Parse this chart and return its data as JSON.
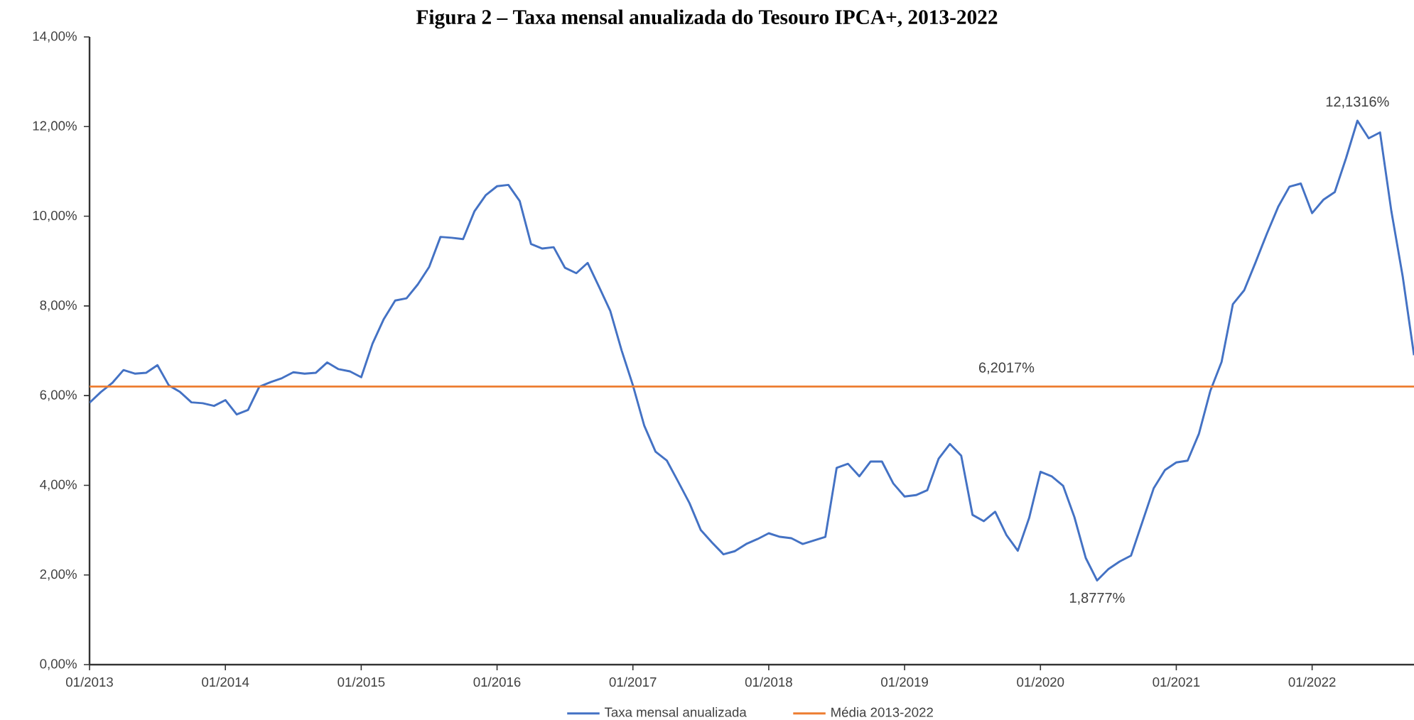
{
  "chart_data": {
    "type": "line",
    "title": "Figura 2 – Taxa mensal anualizada do Tesouro IPCA+, 2013-2022",
    "x": [
      "2013-01",
      "2013-02",
      "2013-03",
      "2013-04",
      "2013-05",
      "2013-06",
      "2013-07",
      "2013-08",
      "2013-09",
      "2013-10",
      "2013-11",
      "2013-12",
      "2014-01",
      "2014-02",
      "2014-03",
      "2014-04",
      "2014-05",
      "2014-06",
      "2014-07",
      "2014-08",
      "2014-09",
      "2014-10",
      "2014-11",
      "2014-12",
      "2015-01",
      "2015-02",
      "2015-03",
      "2015-04",
      "2015-05",
      "2015-06",
      "2015-07",
      "2015-08",
      "2015-09",
      "2015-10",
      "2015-11",
      "2015-12",
      "2016-01",
      "2016-02",
      "2016-03",
      "2016-04",
      "2016-05",
      "2016-06",
      "2016-07",
      "2016-08",
      "2016-09",
      "2016-10",
      "2016-11",
      "2016-12",
      "2017-01",
      "2017-02",
      "2017-03",
      "2017-04",
      "2017-05",
      "2017-06",
      "2017-07",
      "2017-08",
      "2017-09",
      "2017-10",
      "2017-11",
      "2017-12",
      "2018-01",
      "2018-02",
      "2018-03",
      "2018-04",
      "2018-05",
      "2018-06",
      "2018-07",
      "2018-08",
      "2018-09",
      "2018-10",
      "2018-11",
      "2018-12",
      "2019-01",
      "2019-02",
      "2019-03",
      "2019-04",
      "2019-05",
      "2019-06",
      "2019-07",
      "2019-08",
      "2019-09",
      "2019-10",
      "2019-11",
      "2019-12",
      "2020-01",
      "2020-02",
      "2020-03",
      "2020-04",
      "2020-05",
      "2020-06",
      "2020-07",
      "2020-08",
      "2020-09",
      "2020-10",
      "2020-11",
      "2020-12",
      "2021-01",
      "2021-02",
      "2021-03",
      "2021-04",
      "2021-05",
      "2021-06",
      "2021-07",
      "2021-08",
      "2021-09",
      "2021-10",
      "2021-11",
      "2021-12",
      "2022-01",
      "2022-02",
      "2022-03",
      "2022-04",
      "2022-05",
      "2022-06",
      "2022-07",
      "2022-08",
      "2022-09",
      "2022-10"
    ],
    "series": [
      {
        "name": "Taxa mensal anualizada",
        "color": "#4472c4",
        "values": [
          5.84,
          6.08,
          6.28,
          6.57,
          6.49,
          6.51,
          6.68,
          6.23,
          6.08,
          5.85,
          5.83,
          5.77,
          5.9,
          5.58,
          5.68,
          6.2,
          6.3,
          6.39,
          6.52,
          6.49,
          6.51,
          6.74,
          6.59,
          6.54,
          6.41,
          7.16,
          7.71,
          8.12,
          8.17,
          8.48,
          8.87,
          9.54,
          9.52,
          9.49,
          10.11,
          10.47,
          10.67,
          10.7,
          10.34,
          9.38,
          9.28,
          9.31,
          8.85,
          8.73,
          8.96,
          8.43,
          7.89,
          7.01,
          6.23,
          5.33,
          4.75,
          4.55,
          4.08,
          3.6,
          3.0,
          2.72,
          2.46,
          2.53,
          2.69,
          2.8,
          2.93,
          2.85,
          2.82,
          2.69,
          2.77,
          2.85,
          4.39,
          4.48,
          4.2,
          4.53,
          4.53,
          4.04,
          3.75,
          3.78,
          3.89,
          4.59,
          4.92,
          4.66,
          3.34,
          3.2,
          3.41,
          2.89,
          2.54,
          3.27,
          4.3,
          4.2,
          3.99,
          3.29,
          2.38,
          1.8777,
          2.13,
          2.3,
          2.43,
          3.18,
          3.93,
          4.34,
          4.51,
          4.55,
          5.15,
          6.1,
          6.75,
          8.04,
          8.35,
          8.97,
          9.61,
          10.21,
          10.66,
          10.73,
          10.07,
          10.37,
          10.54,
          11.3,
          12.1316,
          11.74,
          11.87,
          10.11,
          8.66,
          6.9
        ]
      },
      {
        "name": "Média 2013-2022",
        "color": "#ed7d31",
        "x": [
          "2013-01",
          "2022-10"
        ],
        "values": [
          6.2017,
          6.2017
        ]
      }
    ],
    "annotations": [
      {
        "text": "12,1316%",
        "x": "2022-05",
        "y": 12.1316
      },
      {
        "text": "6,2017%",
        "x": "2019-10",
        "y": 6.2017
      },
      {
        "text": "1,8777%",
        "x": "2020-06",
        "y": 1.8777
      }
    ],
    "xlim": [
      "2013-01",
      "2022-10"
    ],
    "xticks": [
      {
        "value": "2013-01",
        "label": "01/2013"
      },
      {
        "value": "2014-01",
        "label": "01/2014"
      },
      {
        "value": "2015-01",
        "label": "01/2015"
      },
      {
        "value": "2016-01",
        "label": "01/2016"
      },
      {
        "value": "2017-01",
        "label": "01/2017"
      },
      {
        "value": "2018-01",
        "label": "01/2018"
      },
      {
        "value": "2019-01",
        "label": "01/2019"
      },
      {
        "value": "2020-01",
        "label": "01/2020"
      },
      {
        "value": "2021-01",
        "label": "01/2021"
      },
      {
        "value": "2022-01",
        "label": "01/2022"
      }
    ],
    "ylim": [
      0,
      14
    ],
    "yticks": [
      {
        "value": 0,
        "label": "0,00%"
      },
      {
        "value": 2,
        "label": "2,00%"
      },
      {
        "value": 4,
        "label": "4,00%"
      },
      {
        "value": 6,
        "label": "6,00%"
      },
      {
        "value": 8,
        "label": "8,00%"
      },
      {
        "value": 10,
        "label": "10,00%"
      },
      {
        "value": 12,
        "label": "12,00%"
      },
      {
        "value": 14,
        "label": "14,00%"
      }
    ],
    "grid": false,
    "legend": "bottom",
    "marker": "none",
    "line_style": "solid"
  }
}
